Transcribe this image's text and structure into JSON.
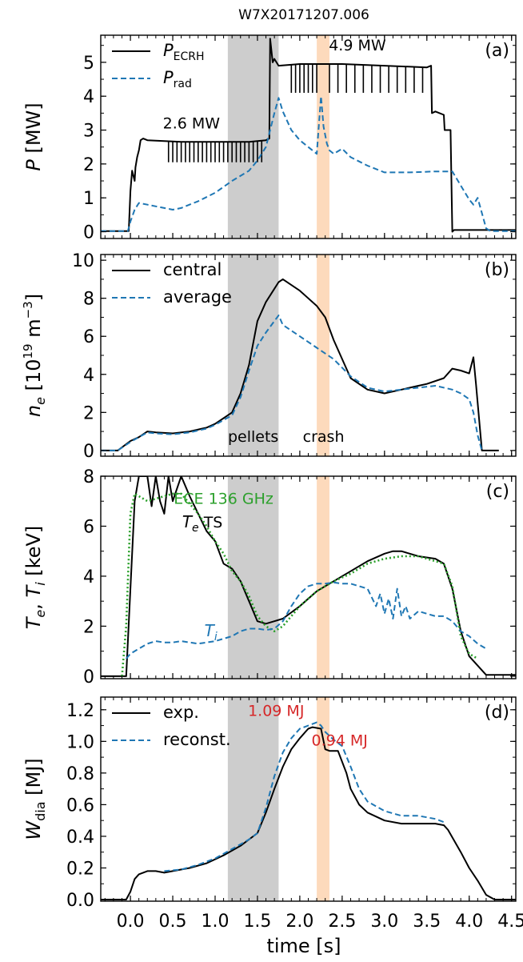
{
  "figure": {
    "title": "W7X20171207.006",
    "xlabel": "time [s]",
    "xlim": [
      -0.35,
      4.55
    ],
    "xticks": [
      0.0,
      0.5,
      1.0,
      1.5,
      2.0,
      2.5,
      3.0,
      3.5,
      4.0,
      4.5
    ],
    "xtick_labels": [
      "0.0",
      "0.5",
      "1.0",
      "1.5",
      "2.0",
      "2.5",
      "3.0",
      "3.5",
      "4.0",
      "4.5"
    ],
    "shaded_regions": [
      {
        "name": "pellets",
        "x": [
          1.15,
          1.75
        ],
        "color": "#c8c8c8"
      },
      {
        "name": "crash",
        "x": [
          2.2,
          2.35
        ],
        "color": "#fdd6b5"
      }
    ],
    "colors": {
      "black": "#000000",
      "blue": "#1f77b4",
      "green": "#2ca02c",
      "red": "#d62728"
    }
  },
  "chart_data": [
    {
      "type": "line",
      "panel": "(a)",
      "ylabel": "P [MW]",
      "ylim": [
        -0.2,
        5.8
      ],
      "yticks": [
        0,
        1,
        2,
        3,
        4,
        5
      ],
      "ytick_labels": [
        "0",
        "1",
        "2",
        "3",
        "4",
        "5"
      ],
      "legend": [
        {
          "label_main": "P",
          "label_sub": "ECRH",
          "style": "solid",
          "color": "#000000"
        },
        {
          "label_main": "P",
          "label_sub": "rad",
          "style": "dashed",
          "color": "#1f77b4"
        }
      ],
      "annotations": [
        {
          "text": "2.6 MW",
          "x": 0.72,
          "y": 3.05
        },
        {
          "text": "4.9 MW",
          "x": 2.68,
          "y": 5.35
        }
      ],
      "series": [
        {
          "name": "P_ECRH",
          "style": "solid",
          "color": "#000000",
          "x": [
            -0.35,
            -0.02,
            0.0,
            0.02,
            0.05,
            0.06,
            0.08,
            0.1,
            0.12,
            0.15,
            0.2,
            0.6,
            1.0,
            1.4,
            1.6,
            1.64,
            1.65,
            1.68,
            1.7,
            1.75,
            2.0,
            2.5,
            3.0,
            3.5,
            3.55,
            3.56,
            3.6,
            3.7,
            3.71,
            3.78,
            3.8,
            3.82,
            4.55
          ],
          "y": [
            0.02,
            0.02,
            1.2,
            1.8,
            1.5,
            1.9,
            2.2,
            2.4,
            2.7,
            2.75,
            2.7,
            2.65,
            2.65,
            2.65,
            2.7,
            2.75,
            5.7,
            5.0,
            5.1,
            4.9,
            4.95,
            4.95,
            4.9,
            4.85,
            4.9,
            3.5,
            3.55,
            3.45,
            3.0,
            3.0,
            0.0,
            0.05,
            0.05
          ],
          "spikes": {
            "y_low": 2.05,
            "x": [
              0.45,
              0.5,
              0.55,
              0.6,
              0.65,
              0.7,
              0.75,
              0.8,
              0.85,
              0.9,
              0.95,
              1.0,
              1.05,
              1.1,
              1.15,
              1.2,
              1.25,
              1.3,
              1.35,
              1.4,
              1.45,
              1.5,
              1.55
            ]
          },
          "spikes2": {
            "y_low": 4.1,
            "x": [
              1.9,
              1.95,
              2.0,
              2.05,
              2.1,
              2.15,
              2.2,
              2.35,
              2.45,
              2.55,
              2.65,
              2.75,
              2.85,
              2.95,
              3.05,
              3.15,
              3.25,
              3.35,
              3.45
            ]
          }
        },
        {
          "name": "P_rad",
          "style": "dashed",
          "color": "#1f77b4",
          "x": [
            -0.35,
            -0.03,
            0.0,
            0.05,
            0.1,
            0.2,
            0.3,
            0.5,
            0.6,
            0.8,
            1.0,
            1.2,
            1.4,
            1.5,
            1.6,
            1.7,
            1.75,
            1.8,
            1.9,
            2.0,
            2.1,
            2.2,
            2.25,
            2.28,
            2.32,
            2.35,
            2.4,
            2.5,
            2.6,
            2.8,
            3.0,
            3.3,
            3.6,
            3.8,
            4.0,
            4.05,
            4.1,
            4.2,
            4.25,
            4.55
          ],
          "y": [
            0.02,
            0.02,
            0.3,
            0.65,
            0.85,
            0.8,
            0.75,
            0.65,
            0.7,
            0.9,
            1.15,
            1.5,
            1.8,
            2.1,
            2.5,
            3.5,
            3.95,
            3.55,
            3.0,
            2.7,
            2.5,
            2.3,
            4.0,
            3.1,
            2.6,
            2.4,
            2.3,
            2.45,
            2.2,
            1.95,
            1.75,
            1.75,
            1.78,
            1.78,
            0.95,
            0.8,
            1.0,
            0.1,
            0.02,
            0.02
          ]
        }
      ]
    },
    {
      "type": "line",
      "panel": "(b)",
      "ylabel_main": "n",
      "ylabel_sub": "e",
      "ylabel_rest": " [10",
      "ylabel_sup": "19",
      "ylabel_unit": " m",
      "ylabel_sup2": "−3",
      "ylabel_end": "]",
      "ylim": [
        -0.3,
        10.3
      ],
      "yticks": [
        0,
        2,
        4,
        6,
        8,
        10
      ],
      "ytick_labels": [
        "0",
        "2",
        "4",
        "6",
        "8",
        "10"
      ],
      "legend": [
        {
          "label": "central",
          "style": "solid",
          "color": "#000000"
        },
        {
          "label": "average",
          "style": "dashed",
          "color": "#1f77b4"
        }
      ],
      "annotations": [
        {
          "text": "pellets",
          "x": 1.45,
          "y": 0.45
        },
        {
          "text": "crash",
          "x": 2.28,
          "y": 0.45
        }
      ],
      "series": [
        {
          "name": "central",
          "style": "solid",
          "color": "#000000",
          "x": [
            -0.35,
            -0.15,
            0.0,
            0.1,
            0.2,
            0.3,
            0.5,
            0.7,
            0.9,
            1.0,
            1.1,
            1.2,
            1.3,
            1.4,
            1.5,
            1.6,
            1.7,
            1.75,
            1.8,
            2.0,
            2.2,
            2.3,
            2.4,
            2.6,
            2.8,
            3.0,
            3.2,
            3.4,
            3.5,
            3.7,
            3.8,
            3.9,
            4.0,
            4.05,
            4.08,
            4.15,
            4.35
          ],
          "y": [
            0.0,
            0.0,
            0.5,
            0.7,
            1.0,
            0.95,
            0.9,
            1.0,
            1.2,
            1.4,
            1.7,
            2.0,
            3.0,
            4.5,
            6.8,
            7.8,
            8.5,
            8.85,
            9.0,
            8.4,
            7.6,
            7.0,
            5.8,
            3.8,
            3.2,
            3.0,
            3.2,
            3.4,
            3.5,
            3.8,
            4.3,
            4.2,
            4.05,
            4.9,
            3.5,
            0.0,
            0.0
          ]
        },
        {
          "name": "average",
          "style": "dashed",
          "color": "#1f77b4",
          "x": [
            -0.35,
            -0.15,
            0.0,
            0.1,
            0.2,
            0.3,
            0.5,
            0.7,
            0.9,
            1.0,
            1.1,
            1.2,
            1.3,
            1.4,
            1.5,
            1.6,
            1.7,
            1.75,
            1.8,
            2.0,
            2.2,
            2.4,
            2.6,
            2.8,
            3.0,
            3.2,
            3.4,
            3.6,
            3.8,
            3.9,
            4.0,
            4.05,
            4.1,
            4.15
          ],
          "y": [
            0.0,
            0.0,
            0.45,
            0.7,
            0.95,
            0.9,
            0.85,
            0.95,
            1.15,
            1.35,
            1.6,
            1.85,
            2.8,
            4.2,
            5.5,
            6.2,
            6.8,
            7.1,
            6.6,
            6.0,
            5.4,
            4.8,
            3.9,
            3.3,
            3.1,
            3.2,
            3.3,
            3.4,
            3.2,
            3.0,
            2.7,
            2.0,
            0.8,
            0.0
          ]
        }
      ]
    },
    {
      "type": "line",
      "panel": "(c)",
      "ylabel_main": "T",
      "ylabel_sub": "e",
      "ylabel_mid": ", T",
      "ylabel_sub2": "i",
      "ylabel_end": " [keV]",
      "ylim": [
        -0.1,
        8.0
      ],
      "yticks": [
        0,
        2,
        4,
        6,
        8
      ],
      "ytick_labels": [
        "0",
        "2",
        "4",
        "6",
        "8"
      ],
      "annotations": [
        {
          "text": "ECE 136 GHz",
          "x": 1.1,
          "y": 6.9,
          "color": "#2ca02c"
        },
        {
          "text_main": "T",
          "text_sub": "e",
          "text_rest": " TS",
          "x": 0.85,
          "y": 5.95,
          "color": "#000000"
        },
        {
          "text_main": "T",
          "text_sub": "i",
          "x": 0.95,
          "y": 1.6,
          "color": "#1f77b4"
        }
      ],
      "series": [
        {
          "name": "Te TS",
          "style": "solid",
          "color": "#000000",
          "x": [
            -0.35,
            -0.05,
            0.0,
            0.05,
            0.1,
            0.2,
            0.25,
            0.3,
            0.35,
            0.4,
            0.45,
            0.5,
            0.55,
            0.6,
            0.7,
            0.8,
            0.9,
            1.0,
            1.1,
            1.2,
            1.3,
            1.4,
            1.5,
            1.6,
            1.7,
            1.8,
            2.0,
            2.2,
            2.4,
            2.6,
            2.8,
            3.0,
            3.1,
            3.2,
            3.4,
            3.6,
            3.7,
            3.8,
            3.9,
            4.0,
            4.2,
            4.55
          ],
          "y": [
            0.0,
            0.0,
            3.5,
            7.0,
            8.0,
            8.0,
            6.8,
            8.0,
            7.0,
            6.5,
            8.0,
            7.0,
            7.5,
            8.0,
            7.2,
            6.5,
            5.8,
            5.4,
            4.5,
            4.3,
            3.8,
            3.0,
            2.2,
            2.1,
            2.2,
            2.3,
            2.8,
            3.4,
            3.8,
            4.2,
            4.6,
            4.9,
            5.0,
            5.0,
            4.8,
            4.7,
            4.5,
            3.5,
            1.8,
            0.8,
            0.05,
            0.05
          ]
        },
        {
          "name": "ECE 136 GHz",
          "style": "dotted",
          "color": "#2ca02c",
          "x": [
            -0.1,
            -0.05,
            0.0,
            0.05,
            0.1,
            0.2,
            0.3,
            0.5,
            0.6,
            0.7,
            0.8,
            0.9,
            1.0,
            1.1,
            1.2,
            1.3,
            1.4,
            1.5,
            1.6,
            1.7,
            1.8,
            2.0,
            2.2,
            2.4,
            2.6,
            2.8,
            3.0,
            3.2,
            3.4,
            3.5,
            3.6,
            3.7,
            3.8,
            3.9,
            4.0,
            4.1
          ],
          "y": [
            0.0,
            2.0,
            6.5,
            7.3,
            7.2,
            7.0,
            7.1,
            7.3,
            7.3,
            6.9,
            6.5,
            6.0,
            5.4,
            4.9,
            4.2,
            3.8,
            3.2,
            2.4,
            2.0,
            1.8,
            2.0,
            2.8,
            3.4,
            3.8,
            4.1,
            4.5,
            4.7,
            4.8,
            4.8,
            4.7,
            4.6,
            4.5,
            3.6,
            1.6,
            0.9,
            0.7
          ]
        },
        {
          "name": "Ti",
          "style": "dashed",
          "color": "#1f77b4",
          "x": [
            -0.05,
            0.0,
            0.1,
            0.2,
            0.3,
            0.4,
            0.5,
            0.6,
            0.8,
            1.0,
            1.1,
            1.2,
            1.3,
            1.4,
            1.5,
            1.6,
            1.7,
            1.8,
            1.9,
            2.0,
            2.1,
            2.2,
            2.3,
            2.4,
            2.5,
            2.6,
            2.7,
            2.8,
            2.9,
            2.95,
            3.0,
            3.05,
            3.1,
            3.15,
            3.2,
            3.25,
            3.3,
            3.4,
            3.5,
            3.6,
            3.7,
            3.8,
            3.9,
            4.0,
            4.1,
            4.2
          ],
          "y": [
            0.7,
            0.9,
            1.1,
            1.3,
            1.4,
            1.35,
            1.35,
            1.4,
            1.3,
            1.4,
            1.5,
            1.6,
            1.8,
            1.9,
            1.9,
            1.85,
            1.9,
            2.2,
            2.8,
            3.3,
            3.6,
            3.7,
            3.7,
            3.75,
            3.7,
            3.7,
            3.6,
            3.5,
            2.8,
            3.3,
            2.5,
            3.1,
            2.3,
            3.5,
            2.4,
            2.8,
            2.3,
            2.6,
            2.5,
            2.4,
            2.4,
            2.2,
            1.8,
            1.6,
            1.3,
            1.1
          ]
        }
      ]
    },
    {
      "type": "line",
      "panel": "(d)",
      "ylabel_main": "W",
      "ylabel_sub": "dia",
      "ylabel_end": " [MJ]",
      "ylim": [
        -0.01,
        1.28
      ],
      "yticks": [
        0.0,
        0.2,
        0.4,
        0.6,
        0.8,
        1.0,
        1.2
      ],
      "ytick_labels": [
        "0.0",
        "0.2",
        "0.4",
        "0.6",
        "0.8",
        "1.0",
        "1.2"
      ],
      "legend": [
        {
          "label": "exp.",
          "style": "solid",
          "color": "#000000"
        },
        {
          "label": "reconst.",
          "style": "dashed",
          "color": "#1f77b4"
        }
      ],
      "annotations": [
        {
          "text": "1.09 MJ",
          "x": 1.72,
          "y": 1.16,
          "color": "#d62728"
        },
        {
          "text": "0.94 MJ",
          "x": 2.47,
          "y": 0.975,
          "color": "#d62728"
        }
      ],
      "series": [
        {
          "name": "exp.",
          "style": "solid",
          "color": "#000000",
          "x": [
            -0.35,
            -0.05,
            0.0,
            0.05,
            0.1,
            0.2,
            0.3,
            0.4,
            0.5,
            0.7,
            0.9,
            1.1,
            1.3,
            1.5,
            1.6,
            1.7,
            1.8,
            1.9,
            2.0,
            2.1,
            2.15,
            2.25,
            2.3,
            2.35,
            2.45,
            2.55,
            2.6,
            2.7,
            2.8,
            3.0,
            3.2,
            3.4,
            3.5,
            3.6,
            3.7,
            3.75,
            3.9,
            4.0,
            4.1,
            4.2,
            4.3,
            4.55
          ],
          "y": [
            0.0,
            0.0,
            0.05,
            0.13,
            0.16,
            0.18,
            0.18,
            0.17,
            0.18,
            0.2,
            0.23,
            0.28,
            0.34,
            0.42,
            0.55,
            0.7,
            0.84,
            0.95,
            1.02,
            1.08,
            1.09,
            1.08,
            0.95,
            0.94,
            0.94,
            0.8,
            0.7,
            0.6,
            0.55,
            0.5,
            0.48,
            0.48,
            0.48,
            0.48,
            0.47,
            0.44,
            0.3,
            0.2,
            0.12,
            0.03,
            0.0,
            0.0
          ]
        },
        {
          "name": "reconst.",
          "style": "dashed",
          "color": "#1f77b4",
          "x": [
            0.4,
            0.6,
            0.8,
            1.0,
            1.2,
            1.4,
            1.5,
            1.6,
            1.7,
            1.8,
            1.9,
            2.0,
            2.1,
            2.2,
            2.25,
            2.3,
            2.4,
            2.5,
            2.6,
            2.7,
            2.8,
            3.0,
            3.2,
            3.4,
            3.6,
            3.7
          ],
          "y": [
            0.18,
            0.19,
            0.22,
            0.26,
            0.32,
            0.38,
            0.42,
            0.58,
            0.78,
            0.93,
            1.02,
            1.08,
            1.1,
            1.12,
            1.1,
            1.06,
            1.01,
            0.97,
            0.84,
            0.7,
            0.62,
            0.56,
            0.53,
            0.53,
            0.51,
            0.49
          ]
        }
      ]
    }
  ]
}
